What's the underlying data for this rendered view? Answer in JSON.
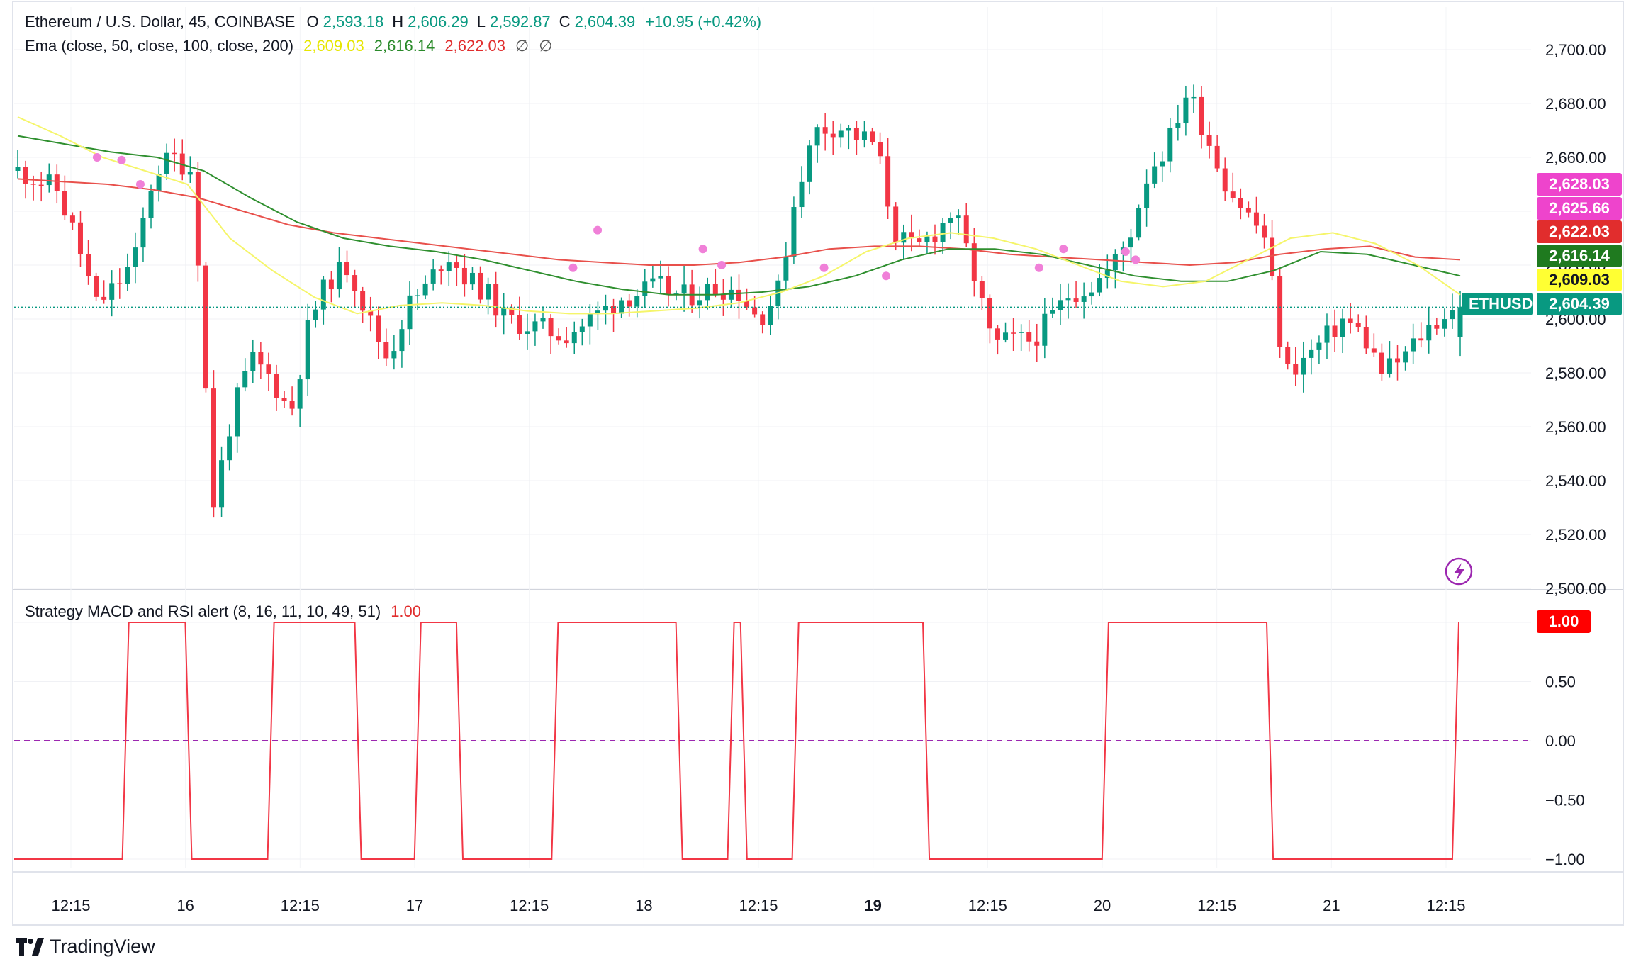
{
  "header": {
    "symbol": "Ethereum / U.S. Dollar, 45, COINBASE",
    "o_label": "O",
    "o_value": "2,593.18",
    "h_label": "H",
    "h_value": "2,606.29",
    "l_label": "L",
    "l_value": "2,592.87",
    "c_label": "C",
    "c_value": "2,604.39",
    "change": "+10.95 (+0.42%)"
  },
  "ema_legend": {
    "label": "Ema (close, 50, close, 100, close, 200)",
    "v50": "2,609.03",
    "v100": "2,616.14",
    "v200": "2,622.03",
    "empty1": "∅",
    "empty2": "∅"
  },
  "strategy_legend": {
    "label": "Strategy MACD and RSI alert (8, 16, 11, 10, 49, 51)",
    "value": "1.00"
  },
  "brand": {
    "name": "TradingView",
    "icon": "tradingview-logo-icon"
  },
  "price_tags": [
    {
      "text": "2,628.03",
      "color": "#ee44cc",
      "value": 2628.03
    },
    {
      "text": "2,625.66",
      "color": "#ee44cc",
      "value": 2625.66
    },
    {
      "text": "2,622.03",
      "color": "#e12d2d",
      "value": 2622.03
    },
    {
      "text": "2,616.14",
      "color": "#1f7a1f",
      "value": 2616.14
    },
    {
      "text": "2,609.03",
      "color": "#ffff33",
      "value": 2609.03
    },
    {
      "text": "2,604.39",
      "color": "#089981",
      "value": 2604.39
    }
  ],
  "symbol_tag": "ETHUSD",
  "osc_tag": {
    "text": "1.00",
    "color": "#ff0000"
  },
  "colors": {
    "up": "#089981",
    "down": "#f23645",
    "ema50": "#f5f56a",
    "ema100": "#2f8f2f",
    "ema200": "#e8504b",
    "signal_marker": "#f080d8",
    "osc": "#f23645",
    "zero_line": "#9c27b0"
  },
  "chart_data": [
    {
      "type": "candlestick",
      "title": "Ethereum / U.S. Dollar, 45, COINBASE",
      "ylim": [
        2500,
        2700
      ],
      "yticks": [
        "2,500.00",
        "2,520.00",
        "2,540.00",
        "2,560.00",
        "2,580.00",
        "2,600.00",
        "2,620.00",
        "2,640.00",
        "2,660.00",
        "2,680.00",
        "2,700.00"
      ],
      "xticks": [
        "12:15",
        "16",
        "12:15",
        "17",
        "12:15",
        "18",
        "12:15",
        "19",
        "12:15",
        "20",
        "12:15",
        "21",
        "12:15"
      ],
      "close_path": [
        2655,
        2652,
        2648,
        2630,
        2605,
        2612,
        2622,
        2655,
        2660,
        2655,
        2530,
        2565,
        2585,
        2578,
        2565,
        2600,
        2615,
        2620,
        2600,
        2585,
        2605,
        2612,
        2625,
        2615,
        2610,
        2600,
        2598,
        2596,
        2594,
        2598,
        2603,
        2608,
        2610,
        2612,
        2608,
        2610,
        2612,
        2610,
        2600,
        2610,
        2650,
        2670,
        2672,
        2668,
        2665,
        2632,
        2625,
        2632,
        2640,
        2618,
        2590,
        2592,
        2592,
        2600,
        2610,
        2612,
        2618,
        2630,
        2655,
        2665,
        2685,
        2668,
        2650,
        2640,
        2630,
        2580,
        2585,
        2592,
        2600,
        2594,
        2580,
        2585,
        2594,
        2601,
        2604
      ],
      "ema50": [
        2675,
        2668,
        2660,
        2655,
        2650,
        2630,
        2618,
        2608,
        2602,
        2605,
        2606,
        2605,
        2603,
        2602,
        2602,
        2603,
        2604,
        2606,
        2610,
        2616,
        2625,
        2630,
        2632,
        2630,
        2626,
        2620,
        2614,
        2612,
        2614,
        2622,
        2630,
        2632,
        2628,
        2620,
        2609
      ],
      "ema100": [
        2668,
        2665,
        2662,
        2660,
        2655,
        2645,
        2636,
        2630,
        2627,
        2625,
        2622,
        2618,
        2614,
        2611,
        2609,
        2609,
        2610,
        2612,
        2616,
        2622,
        2626,
        2626,
        2624,
        2620,
        2616,
        2614,
        2614,
        2618,
        2625,
        2624,
        2620,
        2616
      ],
      "ema200": [
        2652,
        2651,
        2650,
        2648,
        2645,
        2640,
        2635,
        2632,
        2630,
        2628,
        2626,
        2624,
        2622,
        2621,
        2620,
        2620,
        2621,
        2623,
        2626,
        2627,
        2627,
        2626,
        2624,
        2623,
        2622,
        2621,
        2620,
        2621,
        2624,
        2626,
        2627,
        2623,
        2622
      ]
    },
    {
      "type": "line",
      "title": "Strategy MACD and RSI alert (8, 16, 11, 10, 49, 51)",
      "ylim": [
        -1,
        1
      ],
      "yticks": [
        "−1.00",
        "−0.50",
        "0.00",
        "0.50",
        "1.00"
      ],
      "steps": [
        {
          "x": 0.0,
          "v": -1
        },
        {
          "x": 0.067,
          "v": -1
        },
        {
          "x": 0.071,
          "v": 1
        },
        {
          "x": 0.106,
          "v": 1
        },
        {
          "x": 0.11,
          "v": -1
        },
        {
          "x": 0.157,
          "v": -1
        },
        {
          "x": 0.161,
          "v": 1
        },
        {
          "x": 0.211,
          "v": 1
        },
        {
          "x": 0.215,
          "v": -1
        },
        {
          "x": 0.248,
          "v": -1
        },
        {
          "x": 0.252,
          "v": 1
        },
        {
          "x": 0.274,
          "v": 1
        },
        {
          "x": 0.278,
          "v": -1
        },
        {
          "x": 0.333,
          "v": -1
        },
        {
          "x": 0.337,
          "v": 1
        },
        {
          "x": 0.41,
          "v": 1
        },
        {
          "x": 0.414,
          "v": -1
        },
        {
          "x": 0.442,
          "v": -1
        },
        {
          "x": 0.446,
          "v": 1
        },
        {
          "x": 0.45,
          "v": 1
        },
        {
          "x": 0.454,
          "v": -1
        },
        {
          "x": 0.482,
          "v": -1
        },
        {
          "x": 0.486,
          "v": 1
        },
        {
          "x": 0.563,
          "v": 1
        },
        {
          "x": 0.567,
          "v": -1
        },
        {
          "x": 0.674,
          "v": -1
        },
        {
          "x": 0.678,
          "v": 1
        },
        {
          "x": 0.776,
          "v": 1
        },
        {
          "x": 0.78,
          "v": -1
        },
        {
          "x": 0.891,
          "v": -1
        },
        {
          "x": 0.895,
          "v": 1
        }
      ]
    }
  ]
}
